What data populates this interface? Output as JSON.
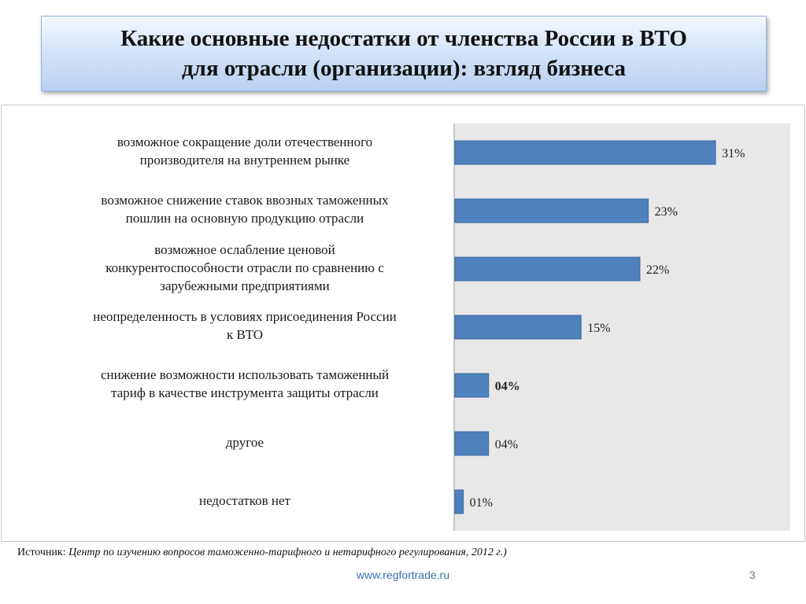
{
  "slide": {
    "title_line1": "Какие основные недостатки от членства России в ВТО",
    "title_line2": "для отрасли (организации): взгляд бизнеса",
    "source_prefix": "Источник:",
    "source_text": "Центр по изучению вопросов таможенно-тарифного и нетарифного регулирования, 2012 г.)",
    "footer_url": "www.regfortrade.ru",
    "page_number": "3"
  },
  "chart_data": {
    "type": "bar",
    "orientation": "horizontal",
    "categories": [
      [
        "возможное сокращение доли отечественного",
        "производителя на внутреннем рынке"
      ],
      [
        "возможное снижение ставок ввозных таможенных",
        "пошлин на основную продукцию отрасли"
      ],
      [
        "возможное ослабление ценовой",
        "конкурентоспособности отрасли по сравнению с",
        "зарубежными предприятиями"
      ],
      [
        "неопределенность в условиях присоединения России",
        "к ВТО"
      ],
      [
        "снижение возможности использовать таможенный",
        "тариф в качестве инструмента защиты отрасли"
      ],
      [
        "другое"
      ],
      [
        "недостатков нет"
      ]
    ],
    "values": [
      31,
      23,
      22,
      15,
      4,
      4,
      1
    ],
    "data_labels": [
      "31%",
      "23%",
      "22%",
      "15%",
      "04%",
      "04%",
      "01%"
    ],
    "bold_labels": [
      false,
      false,
      false,
      false,
      true,
      false,
      false
    ],
    "xlim": [
      0,
      35
    ],
    "grid": false,
    "colors": {
      "bar": "#4f81bd",
      "bar_stroke": "#3a6aa3",
      "plot_bg": "#e8e8e8",
      "axis": "#999999"
    }
  }
}
